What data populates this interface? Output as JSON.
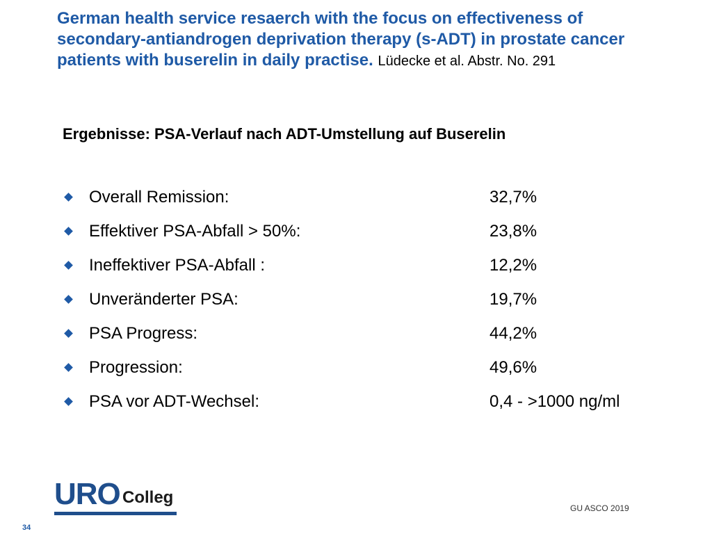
{
  "header": {
    "title": "German health service resaerch with the focus on effectiveness of secondary-antiandrogen deprivation therapy (s-ADT) in prostate cancer patients with buserelin in daily practise.",
    "citation": "Lüdecke et al. Abstr. No. 291"
  },
  "subtitle": "Ergebnisse: PSA-Verlauf nach ADT-Umstellung auf Buserelin",
  "results": [
    {
      "label": "Overall Remission:",
      "value": "32,7%"
    },
    {
      "label": "Effektiver PSA-Abfall > 50%:",
      "value": "23,8%"
    },
    {
      "label": "Ineffektiver PSA-Abfall :",
      "value": "12,2%"
    },
    {
      "label": "Unveränderter PSA:",
      "value": "19,7%"
    },
    {
      "label": "PSA Progress:",
      "value": "44,2%"
    },
    {
      "label": "Progression:",
      "value": "49,6%"
    },
    {
      "label": "PSA vor ADT-Wechsel:",
      "value": "0,4 - >1000 ng/ml"
    }
  ],
  "logo": {
    "part1": "URO",
    "part2": "Colleg"
  },
  "footer": {
    "conference": "GU ASCO 2019",
    "page_number": "34"
  },
  "colors": {
    "accent": "#1f5aa6",
    "logo": "#1f4e8c"
  },
  "icons": {
    "bullet": "diamond-bullet-icon"
  }
}
